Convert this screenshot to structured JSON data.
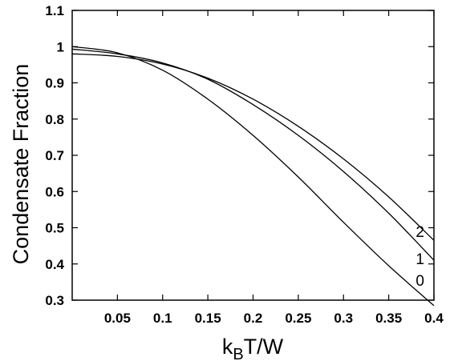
{
  "chart_data": {
    "type": "line",
    "title": "",
    "xlabel": {
      "main": "k",
      "sub": "B",
      "rest": "T/W"
    },
    "ylabel": "Condensate Fraction",
    "xlim": [
      0.0,
      0.4
    ],
    "ylim": [
      0.3,
      1.1
    ],
    "x_ticks": [
      0.05,
      0.1,
      0.15,
      0.2,
      0.25,
      0.3,
      0.35,
      0.4
    ],
    "x_tick_labels": [
      "0.05",
      "0.1",
      "0.15",
      "0.2",
      "0.25",
      "0.3",
      "0.35",
      "0.4"
    ],
    "y_ticks": [
      0.3,
      0.4,
      0.5,
      0.6,
      0.7,
      0.8,
      0.9,
      1.0,
      1.1
    ],
    "y_tick_labels": [
      "0.3",
      "0.4",
      "0.5",
      "0.6",
      "0.7",
      "0.8",
      "0.9",
      "1",
      "1.1"
    ],
    "grid": false,
    "legend": "none",
    "series": [
      {
        "name": "0",
        "x": [
          0.0,
          0.05,
          0.1,
          0.15,
          0.2,
          0.25,
          0.3,
          0.35,
          0.4
        ],
        "y": [
          1.0,
          0.983,
          0.935,
          0.855,
          0.755,
          0.64,
          0.515,
          0.395,
          0.285
        ]
      },
      {
        "name": "1",
        "x": [
          0.0,
          0.05,
          0.1,
          0.15,
          0.2,
          0.25,
          0.3,
          0.35,
          0.4
        ],
        "y": [
          0.993,
          0.98,
          0.955,
          0.91,
          0.84,
          0.755,
          0.655,
          0.54,
          0.41
        ]
      },
      {
        "name": "2",
        "x": [
          0.0,
          0.05,
          0.1,
          0.15,
          0.2,
          0.25,
          0.3,
          0.35,
          0.4
        ],
        "y": [
          0.98,
          0.973,
          0.952,
          0.913,
          0.855,
          0.78,
          0.69,
          0.585,
          0.465
        ]
      }
    ],
    "curve_labels": [
      {
        "text": "0",
        "x": 0.39,
        "y": 0.355
      },
      {
        "text": "1",
        "x": 0.39,
        "y": 0.415
      },
      {
        "text": "2",
        "x": 0.39,
        "y": 0.49
      }
    ]
  }
}
